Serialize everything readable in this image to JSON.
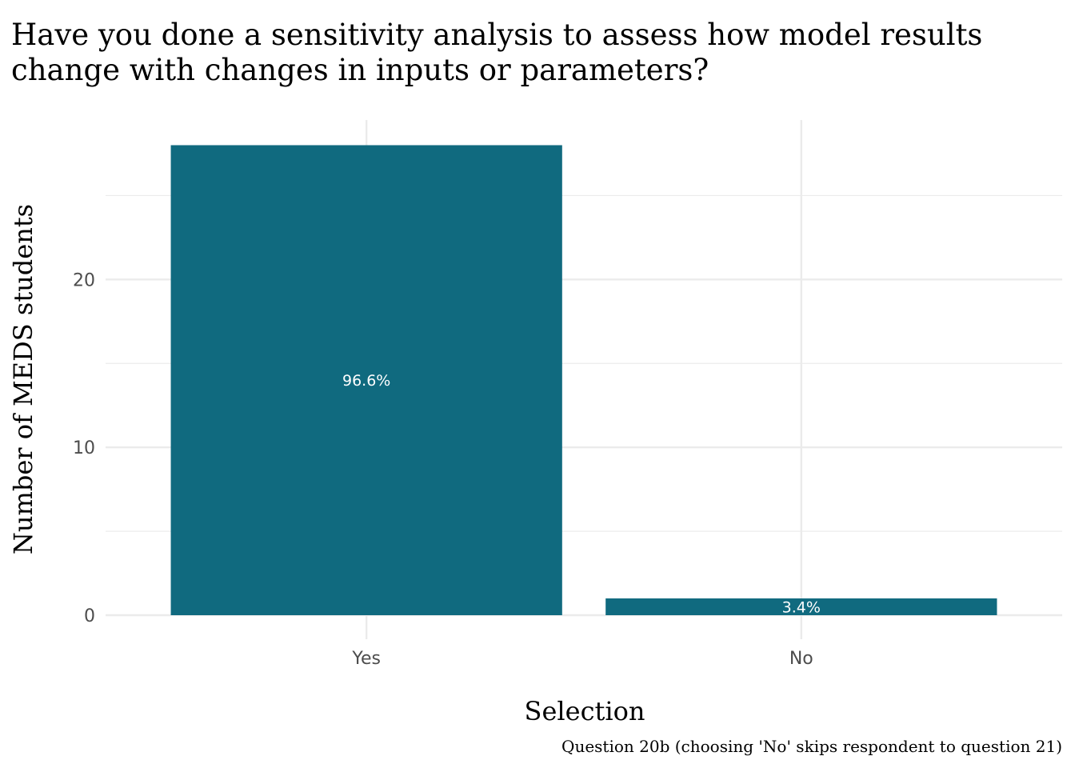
{
  "chart_data": {
    "type": "bar",
    "title_lines": [
      "Have you done a sensitivity analysis to assess how model results",
      "change with changes in inputs or parameters?"
    ],
    "xlabel": "Selection",
    "ylabel": "Number of MEDS students",
    "caption": "Question 20b (choosing 'No' skips respondent to question 21)",
    "categories": [
      "Yes",
      "No"
    ],
    "values": [
      28,
      1
    ],
    "labels": [
      "96.6%",
      "3.4%"
    ],
    "ylim": [
      0,
      29.5
    ],
    "yticks": [
      0,
      10,
      20
    ],
    "grid": true,
    "bar_color": "#106a7f",
    "grid_color": "#ebebeb"
  }
}
